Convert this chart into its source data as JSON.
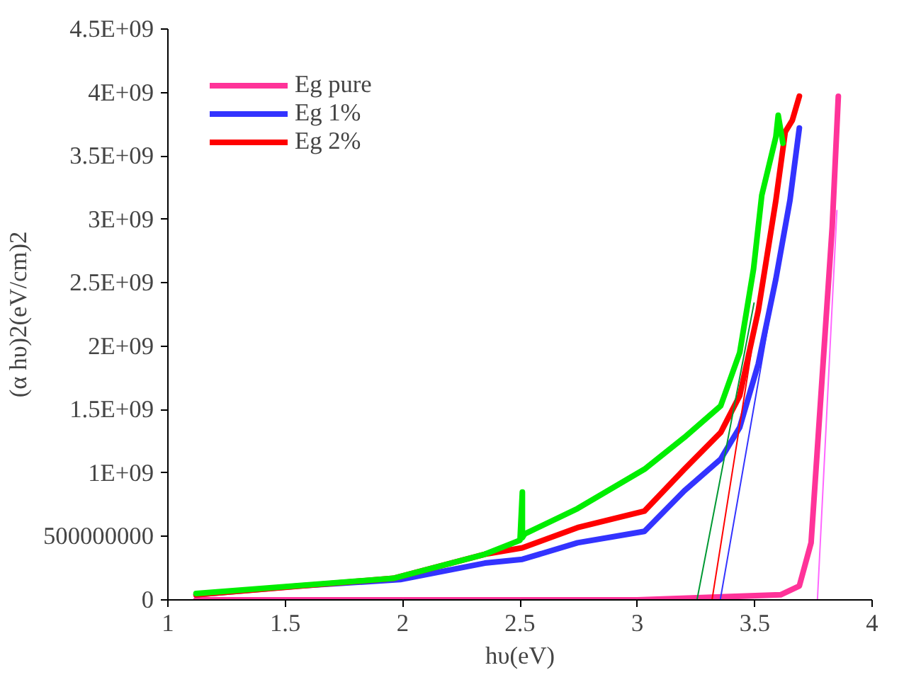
{
  "chart_data": {
    "type": "line",
    "xlabel": "hυ(eV)",
    "ylabel": "(α hυ)2(eV/cm)2",
    "xlim": [
      1,
      4
    ],
    "xticks": [
      1,
      1.5,
      2,
      2.5,
      3,
      3.5,
      4
    ],
    "ylim": [
      0,
      4500000000
    ],
    "yticks": [
      0,
      500000000,
      {
        "value": 1000000000,
        "label": "1E+09"
      },
      {
        "value": 1500000000,
        "label": "1.5E+09"
      },
      {
        "value": 2000000000,
        "label": "2E+09"
      },
      {
        "value": 2500000000,
        "label": "2.5E+09"
      },
      {
        "value": 3000000000,
        "label": "3E+09"
      },
      {
        "value": 3500000000,
        "label": "3.5E+09"
      },
      {
        "value": 4000000000,
        "label": "4E+09"
      },
      {
        "value": 4500000000,
        "label": "4.5E+09"
      }
    ],
    "grid": false,
    "legend": "top left",
    "marker": "none",
    "line_style": "solid",
    "series": [
      {
        "name": "Eg pure",
        "color": "#ff3399",
        "x": [
          1.12,
          2.0,
          3.0,
          3.61,
          3.69,
          3.74,
          3.77,
          3.8,
          3.83,
          3.856
        ],
        "values": [
          0,
          0,
          0,
          40000000,
          110000000,
          450000000,
          1280000000,
          2110000000,
          2940000000,
          3970000000
        ]
      },
      {
        "name": "Eg 1%",
        "color": "#3333ff",
        "x": [
          1.12,
          1.56,
          1.99,
          2.35,
          2.51,
          2.745,
          3.03,
          3.2,
          3.355,
          3.436,
          3.515,
          3.59,
          3.65,
          3.69
        ],
        "values": [
          40000000,
          110000000,
          160000000,
          290000000,
          320000000,
          450000000,
          540000000,
          860000000,
          1110000000,
          1360000000,
          1860000000,
          2530000000,
          3150000000,
          3720000000
        ]
      },
      {
        "name": "Eg 2%",
        "color": "#ff0000",
        "x": [
          1.12,
          1.96,
          2.35,
          2.51,
          2.745,
          3.03,
          3.2,
          3.355,
          3.436,
          3.515,
          3.59,
          3.63,
          3.66,
          3.69
        ],
        "values": [
          40000000,
          170000000,
          360000000,
          410000000,
          570000000,
          700000000,
          1030000000,
          1320000000,
          1610000000,
          2280000000,
          3150000000,
          3690000000,
          3780000000,
          3970000000
        ]
      },
      {
        "color": "#00ee00",
        "x": [
          1.12,
          1.96,
          2.35,
          2.5,
          2.51,
          2.51,
          2.52,
          2.745,
          3.03,
          3.2,
          3.355,
          3.436,
          3.495,
          3.53,
          3.59,
          3.6,
          3.62
        ],
        "values": [
          50000000,
          170000000,
          360000000,
          470000000,
          850000000,
          490000000,
          520000000,
          720000000,
          1030000000,
          1280000000,
          1530000000,
          1950000000,
          2610000000,
          3190000000,
          3650000000,
          3820000000,
          3600000000
        ]
      },
      {
        "color": "#009933",
        "x": [
          3.254,
          3.497
        ],
        "values": [
          0,
          2340000000
        ]
      },
      {
        "color": "#ff0000",
        "x": [
          3.318,
          3.485
        ],
        "values": [
          0,
          1950000000
        ]
      },
      {
        "color": "#3333ff",
        "x": [
          3.353,
          3.65
        ],
        "values": [
          0,
          3150000000
        ]
      },
      {
        "color": "#ff66ff",
        "x": [
          3.767,
          3.85
        ],
        "values": [
          0,
          3070000000
        ]
      }
    ]
  }
}
